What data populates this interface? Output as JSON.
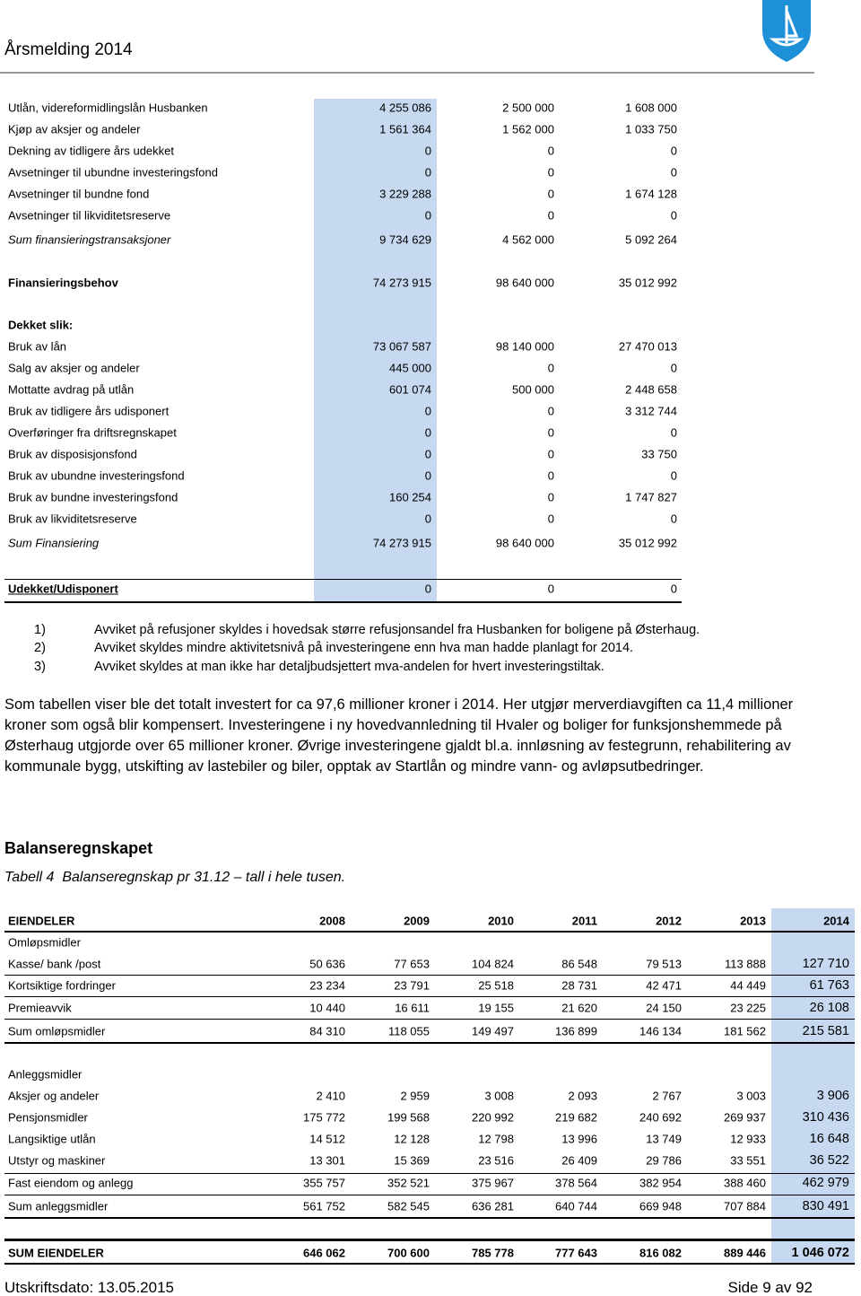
{
  "header": {
    "title": "Årsmelding 2014"
  },
  "table1": {
    "rows": [
      [
        "Utlån, videreformidlingslån Husbanken",
        "4 255 086",
        "2 500 000",
        "1 608 000"
      ],
      [
        "Kjøp av aksjer og andeler",
        "1 561 364",
        "1 562 000",
        "1 033 750"
      ],
      [
        "Dekning av tidligere års udekket",
        "0",
        "0",
        "0"
      ],
      [
        "Avsetninger til ubundne investeringsfond",
        "0",
        "0",
        "0"
      ],
      [
        "Avsetninger til bundne fond",
        "3 229 288",
        "0",
        "1 674 128"
      ],
      [
        "Avsetninger til likviditetsreserve",
        "0",
        "0",
        "0"
      ],
      [
        "Sum finansieringstransaksjoner",
        "9 734 629",
        "4 562 000",
        "5 092 264"
      ],
      [
        "Finansieringsbehov",
        "74 273 915",
        "98 640 000",
        "35 012 992"
      ],
      [
        "Dekket slik:"
      ],
      [
        "Bruk av lån",
        "73 067 587",
        "98 140 000",
        "27 470 013"
      ],
      [
        "Salg av aksjer og andeler",
        "445 000",
        "0",
        "0"
      ],
      [
        "Mottatte avdrag på utlån",
        "601 074",
        "500 000",
        "2 448 658"
      ],
      [
        "Bruk av tidligere års udisponert",
        "0",
        "0",
        "3 312 744"
      ],
      [
        "Overføringer fra driftsregnskapet",
        "0",
        "0",
        "0"
      ],
      [
        "Bruk av disposisjonsfond",
        "0",
        "0",
        "33 750"
      ],
      [
        "Bruk av ubundne investeringsfond",
        "0",
        "0",
        "0"
      ],
      [
        "Bruk av bundne investeringsfond",
        "160 254",
        "0",
        "1 747 827"
      ],
      [
        "Bruk av likviditetsreserve",
        "0",
        "0",
        "0"
      ],
      [
        "Sum Finansiering",
        "74 273 915",
        "98 640 000",
        "35 012 992"
      ],
      [
        "Udekket/Udisponert",
        "0",
        "0",
        "0"
      ]
    ]
  },
  "notes": [
    {
      "number": "1)",
      "text": "Avviket på refusjoner skyldes i hovedsak større refusjonsandel fra Husbanken for boligene på Østerhaug."
    },
    {
      "number": "2)",
      "text": "Avviket skyldes mindre aktivitetsnivå på investeringene enn hva man hadde planlagt for 2014."
    },
    {
      "number": "3)",
      "text": "Avviket skyldes at man ikke har detaljbudsjettert mva-andelen for hvert investeringstiltak."
    }
  ],
  "paragraph": "Som tabellen viser ble det totalt investert for ca 97,6 millioner kroner i 2014. Her utgjør merverdiavgiften ca 11,4 millioner kroner som også blir kompensert. Investeringene i ny hovedvannledning til Hvaler og boliger for funksjonshemmede på Østerhaug utgjorde over 65 millioner kroner. Øvrige investeringene gjaldt bl.a. innløsning av festegrunn, rehabilitering av kommunale bygg, utskifting av lastebiler og biler, opptak av Startlån og mindre vann- og avløpsutbedringer.",
  "section": {
    "heading": "Balanseregnskapet",
    "caption": "Tabell 4  Balanseregnskap pr 31.12 – tall i hele tusen."
  },
  "table2": {
    "header": [
      "EIENDELER",
      "2008",
      "2009",
      "2010",
      "2011",
      "2012",
      "2013",
      "2014"
    ],
    "rows": [
      [
        "Omløpsmidler"
      ],
      [
        "Kasse/ bank /post",
        "50 636",
        "77 653",
        "104 824",
        "86 548",
        "79 513",
        "113 888",
        "127 710"
      ],
      [
        "Kortsiktige fordringer",
        "23 234",
        "23 791",
        "25 518",
        "28 731",
        "42 471",
        "44 449",
        "61 763"
      ],
      [
        "Premieavvik",
        "10 440",
        "16 611",
        "19 155",
        "21 620",
        "24 150",
        "23 225",
        "26 108"
      ],
      [
        "Sum omløpsmidler",
        "84 310",
        "118 055",
        "149 497",
        "136 899",
        "146 134",
        "181 562",
        "215 581"
      ],
      [
        "Anleggsmidler"
      ],
      [
        "Aksjer og andeler",
        "2 410",
        "2 959",
        "3 008",
        "2 093",
        "2 767",
        "3 003",
        "3 906"
      ],
      [
        "Pensjonsmidler",
        "175 772",
        "199 568",
        "220 992",
        "219 682",
        "240 692",
        "269 937",
        "310 436"
      ],
      [
        "Langsiktige utlån",
        "14 512",
        "12 128",
        "12 798",
        "13 996",
        "13 749",
        "12 933",
        "16 648"
      ],
      [
        "Utstyr og maskiner",
        "13 301",
        "15 369",
        "23 516",
        "26 409",
        "29 786",
        "33 551",
        "36 522"
      ],
      [
        "Fast eiendom og anlegg",
        "355 757",
        "352 521",
        "375 967",
        "378 564",
        "382 954",
        "388 460",
        "462 979"
      ],
      [
        "Sum anleggsmidler",
        "561 752",
        "582 545",
        "636 281",
        "640 744",
        "669 948",
        "707 884",
        "830 491"
      ],
      [
        "SUM EIENDELER",
        "646 062",
        "700 600",
        "785 778",
        "777 643",
        "816 082",
        "889 446",
        "1 046 072"
      ]
    ]
  },
  "footer": {
    "date": "Utskriftsdato: 13.05.2015",
    "page": "Side 9 av 92"
  }
}
